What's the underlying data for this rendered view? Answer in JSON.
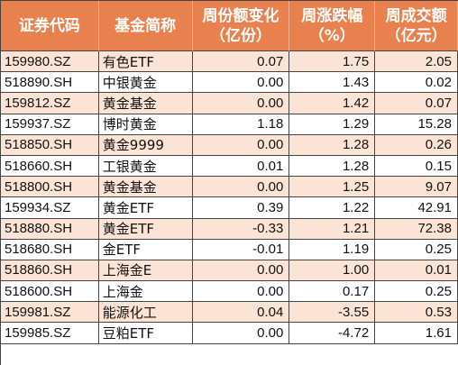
{
  "headers": [
    "证券代码",
    "基金简称",
    "周份额变化\n（亿份）",
    "周涨跌幅\n（%）",
    "周成交额\n（亿元）"
  ],
  "rows": [
    [
      "159980.SZ",
      "有色ETF",
      "0.07",
      "1.75",
      "2.05"
    ],
    [
      "518890.SH",
      "中银黄金",
      "0.00",
      "1.43",
      "0.02"
    ],
    [
      "159812.SZ",
      "黄金基金",
      "0.00",
      "1.42",
      "0.07"
    ],
    [
      "159937.SZ",
      "博时黄金",
      "1.18",
      "1.29",
      "15.28"
    ],
    [
      "518850.SH",
      "黄金9999",
      "0.00",
      "1.28",
      "0.26"
    ],
    [
      "518660.SH",
      "工银黄金",
      "0.01",
      "1.28",
      "0.15"
    ],
    [
      "518800.SH",
      "黄金基金",
      "0.00",
      "1.25",
      "9.07"
    ],
    [
      "159934.SZ",
      "黄金ETF",
      "0.39",
      "1.22",
      "42.91"
    ],
    [
      "518880.SH",
      "黄金ETF",
      "-0.33",
      "1.21",
      "72.38"
    ],
    [
      "518680.SH",
      "金ETF",
      "-0.01",
      "1.19",
      "0.25"
    ],
    [
      "518860.SH",
      "上海金E",
      "0.00",
      "1.00",
      "0.01"
    ],
    [
      "518600.SH",
      "上海金",
      "0.00",
      "0.17",
      "0.25"
    ],
    [
      "159981.SZ",
      "能源化工",
      "0.04",
      "-3.55",
      "0.53"
    ],
    [
      "159985.SZ",
      "豆粕ETF",
      "0.00",
      "-4.72",
      "1.61"
    ]
  ],
  "colors": {
    "header_bg": "#e8814d",
    "header_text": "#ffffff",
    "row_alt_bg": "#fbe4d6",
    "row_bg": "#ffffff"
  }
}
